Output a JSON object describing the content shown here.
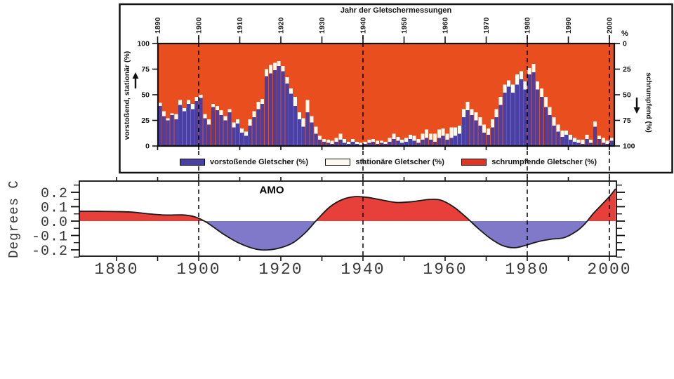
{
  "dashed_years": [
    1900,
    1940,
    1980,
    2000
  ],
  "chart_data": [
    {
      "type": "bar",
      "id": "glacier-measurements",
      "title": "Jahr der Gletschermessungen",
      "left_axis": {
        "label": "vorstoßend, stationär (%)",
        "ticks": [
          100,
          75,
          50,
          25,
          0
        ],
        "arrow": "up"
      },
      "right_axis": {
        "label": "schrumpfend (%)",
        "unit": "%",
        "ticks": [
          0,
          25,
          50,
          75,
          100
        ],
        "arrow": "down"
      },
      "x_ticks": [
        1890,
        1900,
        1910,
        1920,
        1930,
        1940,
        1950,
        1960,
        1970,
        1980,
        1990,
        2000
      ],
      "ylim": [
        0,
        100
      ],
      "colors": {
        "background": "#e84e1e",
        "advancing": "#4a3fa3",
        "stationary": "#fbfaf0",
        "frame": "#111111"
      },
      "legend": [
        {
          "label": "vorstoßende Gletscher (%)",
          "color": "#4a3fa3"
        },
        {
          "label": "stationäre Gletscher (%)",
          "color": "#fbfaf0"
        },
        {
          "label": "schrumpfende Gletscher (%)",
          "color": "#e03520"
        }
      ],
      "years": [
        1890,
        1891,
        1892,
        1893,
        1894,
        1895,
        1896,
        1897,
        1898,
        1899,
        1900,
        1901,
        1902,
        1903,
        1904,
        1905,
        1906,
        1907,
        1908,
        1909,
        1910,
        1911,
        1912,
        1913,
        1914,
        1915,
        1916,
        1917,
        1918,
        1919,
        1920,
        1921,
        1922,
        1923,
        1924,
        1925,
        1926,
        1927,
        1928,
        1929,
        1930,
        1931,
        1932,
        1933,
        1934,
        1935,
        1936,
        1937,
        1938,
        1939,
        1940,
        1941,
        1942,
        1943,
        1944,
        1945,
        1946,
        1947,
        1948,
        1949,
        1950,
        1951,
        1952,
        1953,
        1954,
        1955,
        1956,
        1957,
        1958,
        1959,
        1960,
        1961,
        1962,
        1963,
        1964,
        1965,
        1966,
        1967,
        1968,
        1969,
        1970,
        1971,
        1972,
        1973,
        1974,
        1975,
        1976,
        1977,
        1978,
        1979,
        1980,
        1981,
        1982,
        1983,
        1984,
        1985,
        1986,
        1987,
        1988,
        1989,
        1990,
        1991,
        1992,
        1993,
        1994,
        1995,
        1996,
        1997,
        1998,
        1999,
        2000
      ],
      "series": [
        {
          "name": "vorstoßende Gletscher (%)",
          "values": [
            39,
            29,
            25,
            30,
            26,
            40,
            34,
            41,
            36,
            44,
            47,
            27,
            21,
            38,
            35,
            30,
            25,
            33,
            18,
            22,
            13,
            10,
            20,
            28,
            36,
            41,
            68,
            71,
            74,
            78,
            73,
            61,
            51,
            39,
            26,
            19,
            33,
            23,
            12,
            6,
            4,
            3,
            2,
            4,
            6,
            3,
            2,
            4,
            2,
            1,
            2,
            3,
            4,
            2,
            3,
            2,
            4,
            7,
            5,
            3,
            4,
            7,
            5,
            3,
            6,
            8,
            6,
            4,
            8,
            10,
            6,
            8,
            10,
            12,
            28,
            35,
            30,
            25,
            20,
            13,
            11,
            18,
            28,
            40,
            52,
            58,
            52,
            60,
            65,
            55,
            70,
            72,
            55,
            48,
            38,
            30,
            20,
            14,
            9,
            11,
            6,
            4,
            3,
            2,
            7,
            3,
            19,
            7,
            3,
            2,
            5
          ]
        },
        {
          "name": "stationäre Gletscher (%)",
          "values": [
            3,
            5,
            2,
            2,
            5,
            5,
            3,
            4,
            5,
            4,
            3,
            4,
            5,
            3,
            4,
            5,
            4,
            3,
            5,
            4,
            4,
            4,
            6,
            6,
            7,
            5,
            7,
            8,
            7,
            5,
            5,
            6,
            5,
            9,
            7,
            8,
            12,
            6,
            7,
            4,
            3,
            3,
            3,
            4,
            6,
            4,
            2,
            3,
            2,
            2,
            2,
            3,
            3,
            3,
            2,
            2,
            4,
            5,
            4,
            3,
            4,
            4,
            5,
            4,
            6,
            8,
            6,
            8,
            8,
            7,
            6,
            10,
            8,
            8,
            8,
            8,
            6,
            8,
            8,
            8,
            6,
            8,
            8,
            8,
            8,
            6,
            8,
            10,
            8,
            8,
            6,
            8,
            8,
            8,
            10,
            8,
            8,
            7,
            6,
            4,
            5,
            4,
            3,
            4,
            4,
            3,
            5,
            3,
            5,
            3,
            3
          ]
        }
      ]
    },
    {
      "type": "area",
      "id": "amo",
      "label": "AMO",
      "ylabel": "Degrees C",
      "y_ticks": [
        "0.2",
        "0.1",
        "0.0",
        "-0.1",
        "-0.2"
      ],
      "x_ticks": [
        1880,
        1900,
        1920,
        1940,
        1960,
        1980,
        2000
      ],
      "xlim": [
        1871,
        2001.5
      ],
      "ylim": [
        -0.25,
        0.28
      ],
      "colors": {
        "positive": "#e7403a",
        "negative": "#8078c9",
        "line": "#1a1a1a"
      },
      "x": [
        1871,
        1875,
        1880,
        1884,
        1888,
        1892,
        1896,
        1899,
        1902,
        1906,
        1910,
        1914,
        1917,
        1920,
        1923,
        1926,
        1929,
        1932,
        1935,
        1938,
        1941,
        1944,
        1948,
        1952,
        1956,
        1959,
        1962,
        1965,
        1968,
        1971,
        1974,
        1977,
        1980,
        1983,
        1986,
        1989,
        1992,
        1994,
        1996,
        1998,
        2000,
        2001.5
      ],
      "y": [
        0.068,
        0.068,
        0.066,
        0.062,
        0.05,
        0.042,
        0.043,
        0.03,
        -0.01,
        -0.09,
        -0.155,
        -0.195,
        -0.2,
        -0.185,
        -0.15,
        -0.08,
        0.015,
        0.1,
        0.15,
        0.17,
        0.165,
        0.15,
        0.13,
        0.135,
        0.15,
        0.145,
        0.1,
        0.03,
        -0.05,
        -0.12,
        -0.17,
        -0.185,
        -0.165,
        -0.14,
        -0.125,
        -0.115,
        -0.07,
        -0.02,
        0.05,
        0.11,
        0.17,
        0.225
      ]
    }
  ]
}
